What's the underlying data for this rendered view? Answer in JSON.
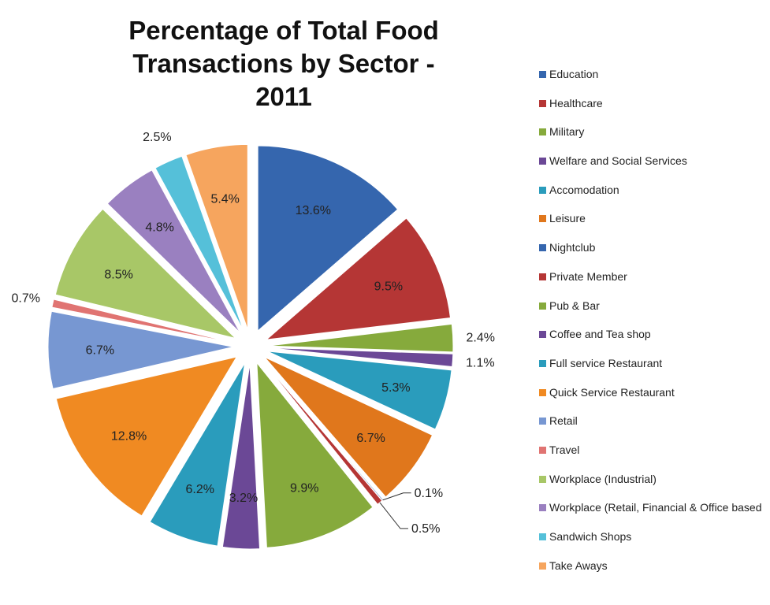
{
  "chart_data": {
    "type": "pie",
    "title_line1": "Percentage of Total Food Transactions by Sector -",
    "title_line2": "2011",
    "exploded": true,
    "legend_position": "right",
    "slices": [
      {
        "name": "Education",
        "value": 13.6,
        "label": "13.6%",
        "color": "#3566AE"
      },
      {
        "name": "Healthcare",
        "value": 9.5,
        "label": "9.5%",
        "color": "#B53635"
      },
      {
        "name": "Military",
        "value": 2.4,
        "label": "2.4%",
        "color": "#86AA3C"
      },
      {
        "name": "Welfare and Social Services",
        "value": 1.1,
        "label": "1.1%",
        "color": "#6B4896"
      },
      {
        "name": "Accomodation",
        "value": 5.3,
        "label": "5.3%",
        "color": "#2A9CBC"
      },
      {
        "name": "Leisure",
        "value": 6.7,
        "label": "6.7%",
        "color": "#E0771C"
      },
      {
        "name": "Nightclub",
        "value": 0.1,
        "label": "0.1%",
        "color": "#3566AE"
      },
      {
        "name": "Private Member",
        "value": 0.5,
        "label": "0.5%",
        "color": "#B53635"
      },
      {
        "name": "Pub & Bar",
        "value": 9.9,
        "label": "9.9%",
        "color": "#86AA3C"
      },
      {
        "name": "Coffee and Tea shop",
        "value": 3.2,
        "label": "3.2%",
        "color": "#6B4896"
      },
      {
        "name": "Full service Restaurant",
        "value": 6.2,
        "label": "6.2%",
        "color": "#2A9CBC"
      },
      {
        "name": "Quick Service Restaurant",
        "value": 12.8,
        "label": "12.8%",
        "color": "#F08A22"
      },
      {
        "name": "Retail",
        "value": 6.7,
        "label": "6.7%",
        "color": "#7797D2"
      },
      {
        "name": "Travel",
        "value": 0.7,
        "label": "0.7%",
        "color": "#E07472"
      },
      {
        "name": "Workplace (Industrial)",
        "value": 8.5,
        "label": "8.5%",
        "color": "#A8C767"
      },
      {
        "name": "Workplace (Retail, Financial & Office based",
        "value": 4.8,
        "label": "4.8%",
        "color": "#9A80C0"
      },
      {
        "name": "Sandwich Shops",
        "value": 2.5,
        "label": "2.5%",
        "color": "#55C0D9"
      },
      {
        "name": "Take Aways",
        "value": 5.4,
        "label": "5.4%",
        "color": "#F6A55E"
      }
    ]
  }
}
